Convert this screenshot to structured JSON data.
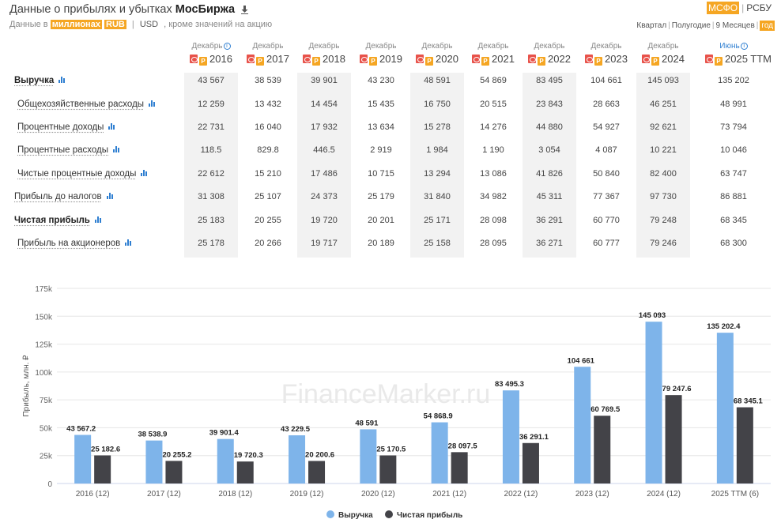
{
  "header": {
    "title_prefix": "Данные о прибылях и убытках",
    "company": "МосБиржа",
    "download_icon": "download-icon",
    "data_in": "Данные в",
    "unit": "миллионах",
    "currency": "RUB",
    "alt_currency": "USD",
    "note": ", кроме значений на акцию"
  },
  "standards": {
    "ifrs": "МСФО",
    "ras": "РСБУ",
    "active": "МСФО"
  },
  "periods": {
    "items": [
      "Квартал",
      "Полугодие",
      "9 Месяцев",
      "год"
    ],
    "active": "год"
  },
  "columns": [
    {
      "month": "Декабрь",
      "year": "2016",
      "info": true
    },
    {
      "month": "Декабрь",
      "year": "2017"
    },
    {
      "month": "Декабрь",
      "year": "2018"
    },
    {
      "month": "Декабрь",
      "year": "2019"
    },
    {
      "month": "Декабрь",
      "year": "2020"
    },
    {
      "month": "Декабрь",
      "year": "2021"
    },
    {
      "month": "Декабрь",
      "year": "2022"
    },
    {
      "month": "Декабрь",
      "year": "2023"
    },
    {
      "month": "Декабрь",
      "year": "2024"
    },
    {
      "month": "Июнь",
      "year": "2025 TTM",
      "info": true
    }
  ],
  "rows": [
    {
      "label": "Выручка",
      "bold": true,
      "values": [
        "43 567",
        "38 539",
        "39 901",
        "43 230",
        "48 591",
        "54 869",
        "83 495",
        "104 661",
        "145 093",
        "135 202"
      ]
    },
    {
      "label": "Общехозяйственные расходы",
      "values": [
        "12 259",
        "13 432",
        "14 454",
        "15 435",
        "16 750",
        "20 515",
        "23 843",
        "28 663",
        "46 251",
        "48 991"
      ]
    },
    {
      "label": "Процентные доходы",
      "values": [
        "22 731",
        "16 040",
        "17 932",
        "13 634",
        "15 278",
        "14 276",
        "44 880",
        "54 927",
        "92 621",
        "73 794"
      ]
    },
    {
      "label": "Процентные расходы",
      "values": [
        "118.5",
        "829.8",
        "446.5",
        "2 919",
        "1 984",
        "1 190",
        "3 054",
        "4 087",
        "10 221",
        "10 046"
      ]
    },
    {
      "label": "Чистые процентные доходы",
      "values": [
        "22 612",
        "15 210",
        "17 486",
        "10 715",
        "13 294",
        "13 086",
        "41 826",
        "50 840",
        "82 400",
        "63 747"
      ]
    },
    {
      "label": "Прибыль до налогов",
      "values": [
        "31 308",
        "25 107",
        "24 373",
        "25 179",
        "31 840",
        "34 982",
        "45 311",
        "77 367",
        "97 730",
        "86 881"
      ]
    },
    {
      "label": "Чистая прибыль",
      "bold": true,
      "values": [
        "25 183",
        "20 255",
        "19 720",
        "20 201",
        "25 171",
        "28 098",
        "36 291",
        "60 770",
        "79 248",
        "68 345"
      ]
    },
    {
      "label": "Прибыль на акционеров",
      "values": [
        "25 178",
        "20 266",
        "19 717",
        "20 189",
        "25 158",
        "28 095",
        "36 271",
        "60 777",
        "79 246",
        "68 300"
      ]
    }
  ],
  "watermark": "FinanceMarker.ru",
  "colors": {
    "accent": "#f5a623",
    "revenue": "#7eb4ea",
    "profit": "#434348",
    "link": "#2f7fd1"
  },
  "chart_data": {
    "type": "bar",
    "categories": [
      "2016 (12)",
      "2017 (12)",
      "2018 (12)",
      "2019 (12)",
      "2020 (12)",
      "2021 (12)",
      "2022 (12)",
      "2023 (12)",
      "2024 (12)",
      "2025 TTM (6)"
    ],
    "series": [
      {
        "name": "Выручка",
        "values": [
          43567.2,
          38538.9,
          39901.4,
          43229.5,
          48591,
          54868.9,
          83495.3,
          104661,
          145093,
          135202.4
        ],
        "labels": [
          "43 567.2",
          "38 538.9",
          "39 901.4",
          "43 229.5",
          "48 591",
          "54 868.9",
          "83 495.3",
          "104 661",
          "145 093",
          "135 202.4"
        ],
        "color": "#7eb4ea"
      },
      {
        "name": "Чистая прибыль",
        "values": [
          25182.6,
          20255.2,
          19720.3,
          20200.6,
          25170.5,
          28097.5,
          36291.1,
          60769.5,
          79247.6,
          68345.1
        ],
        "labels": [
          "25 182.6",
          "20 255.2",
          "19 720.3",
          "20 200.6",
          "25 170.5",
          "28 097.5",
          "36 291.1",
          "60 769.5",
          "79 247.6",
          "68 345.1"
        ],
        "color": "#434348"
      }
    ],
    "ylabel": "Прибыль, млн. ₽",
    "ylim": [
      0,
      175000
    ],
    "yticks": [
      0,
      25000,
      50000,
      75000,
      100000,
      125000,
      150000,
      175000
    ],
    "ytick_labels": [
      "0",
      "25k",
      "50k",
      "75k",
      "100k",
      "125k",
      "150k",
      "175k"
    ],
    "legend_position": "bottom"
  }
}
